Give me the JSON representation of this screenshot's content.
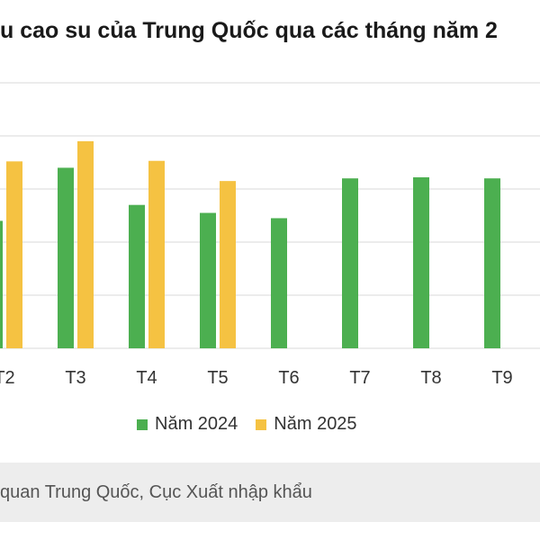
{
  "title": "u cao su của Trung Quốc qua các tháng năm 2",
  "source_text": "quan Trung Quốc, Cục Xuất nhập khẩu",
  "colors": {
    "series_2024": "#4caf50",
    "series_2025": "#f5c242",
    "grid": "#d9d9d9",
    "source_bg": "#ededed"
  },
  "chart_data": {
    "type": "bar",
    "title": "u cao su của Trung Quốc qua các tháng năm 2",
    "xlabel": "",
    "ylabel": "",
    "categories": [
      "T2",
      "T3",
      "T4",
      "T5",
      "T6",
      "T7",
      "T8",
      "T9"
    ],
    "ylim": [
      0,
      5
    ],
    "grid": true,
    "legend_position": "bottom",
    "series": [
      {
        "name": "Năm 2024",
        "color": "#4caf50",
        "values": [
          2.4,
          3.4,
          2.7,
          2.55,
          2.45,
          3.2,
          3.22,
          3.2
        ]
      },
      {
        "name": "Năm 2025",
        "color": "#f5c242",
        "values": [
          3.52,
          3.9,
          3.53,
          3.15,
          null,
          null,
          null,
          null
        ]
      }
    ]
  }
}
